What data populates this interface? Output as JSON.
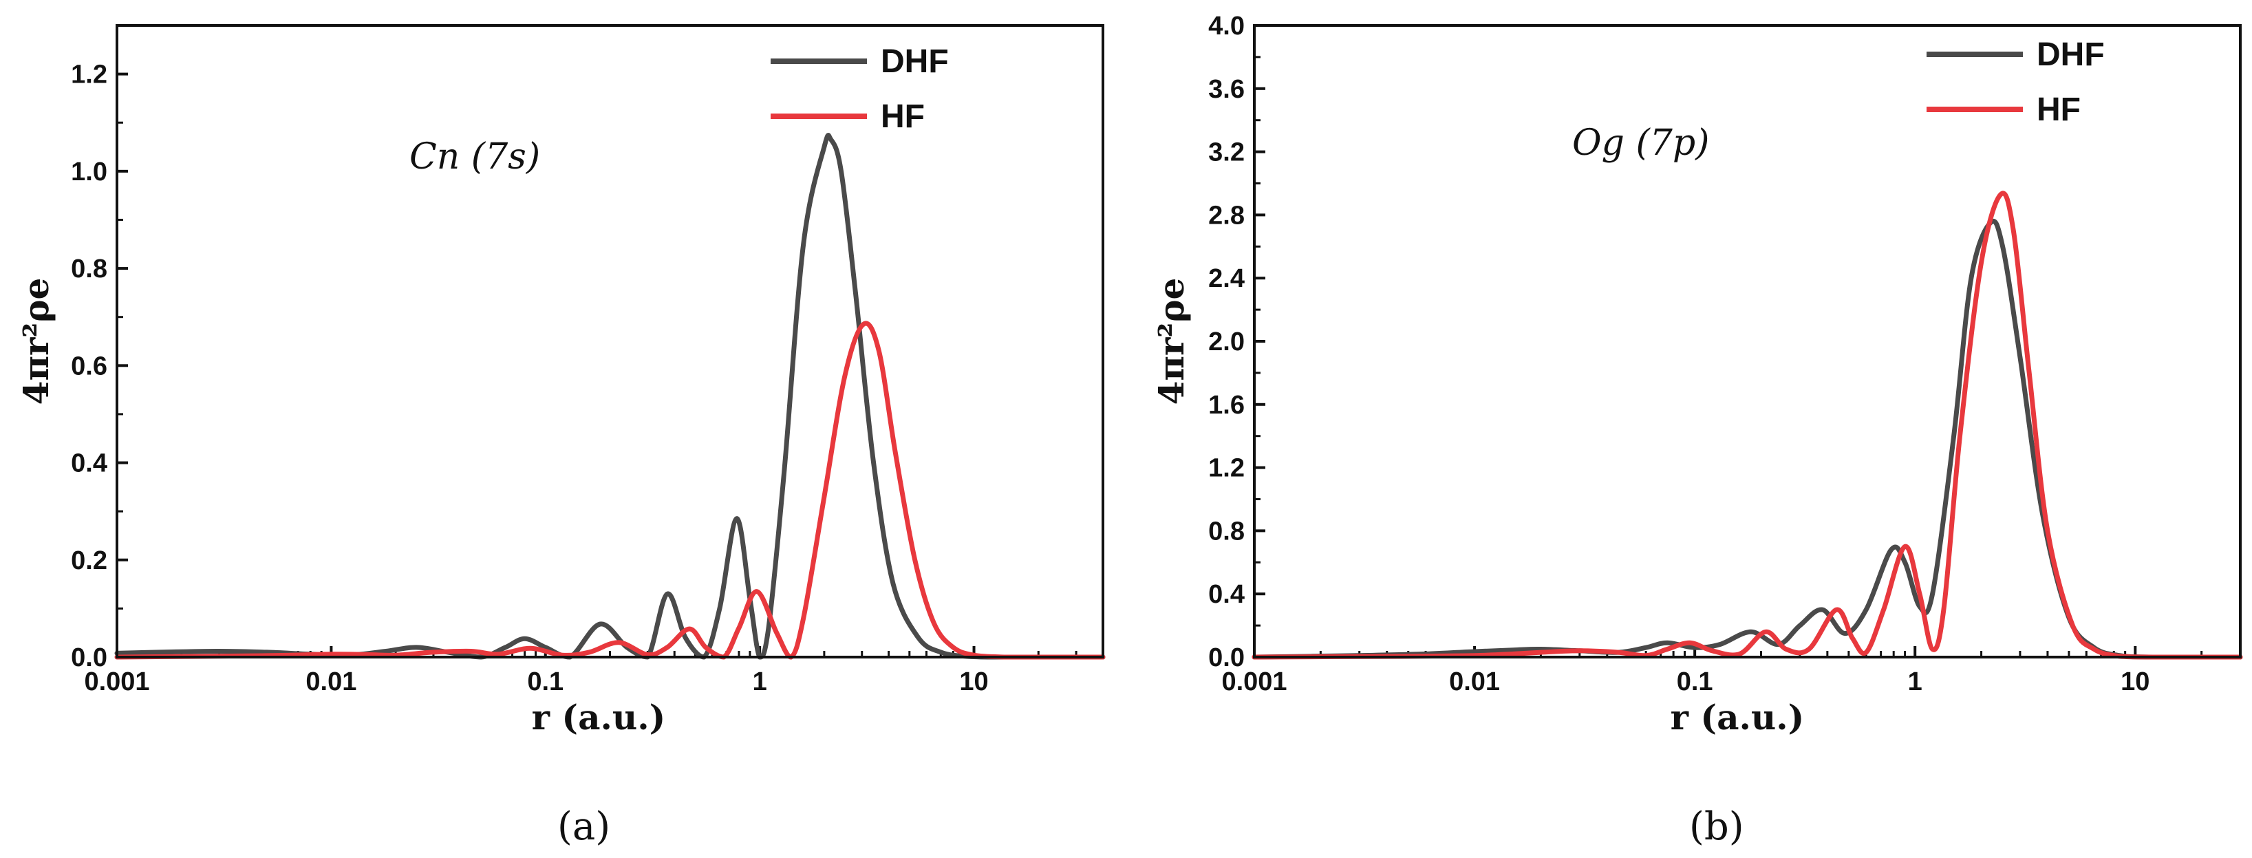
{
  "chart_data": [
    {
      "type": "line",
      "panel_label": "(a)",
      "annotation": "Cn (7s)",
      "xlabel": "r (a.u.)",
      "ylabel": "4πr²ρe",
      "xscale": "log",
      "xlim": [
        0.001,
        40
      ],
      "ylim": [
        0,
        1.3
      ],
      "xticks": [
        {
          "value": 0.001,
          "label": "0.001"
        },
        {
          "value": 0.01,
          "label": "0.01"
        },
        {
          "value": 0.1,
          "label": "0.1"
        },
        {
          "value": 1,
          "label": "1"
        },
        {
          "value": 10,
          "label": "10"
        }
      ],
      "yticks": [
        {
          "value": 0.0,
          "label": "0.0"
        },
        {
          "value": 0.2,
          "label": "0.2"
        },
        {
          "value": 0.4,
          "label": "0.4"
        },
        {
          "value": 0.6,
          "label": "0.6"
        },
        {
          "value": 0.8,
          "label": "0.8"
        },
        {
          "value": 1.0,
          "label": "1.0"
        },
        {
          "value": 1.2,
          "label": "1.2"
        }
      ],
      "legend_position": "top-right",
      "series": [
        {
          "name": "DHF",
          "color": "#4a4a4a",
          "x": [
            0.001,
            0.002,
            0.003,
            0.005,
            0.008,
            0.012,
            0.018,
            0.025,
            0.035,
            0.05,
            0.065,
            0.08,
            0.1,
            0.13,
            0.18,
            0.24,
            0.3,
            0.37,
            0.45,
            0.55,
            0.65,
            0.78,
            0.9,
            1.0,
            1.1,
            1.3,
            1.6,
            2.0,
            2.15,
            2.4,
            2.8,
            3.4,
            4.2,
            5.5,
            7.0,
            9.0,
            12.0,
            20.0,
            40.0
          ],
          "y": [
            0.008,
            0.011,
            0.012,
            0.01,
            0.006,
            0.004,
            0.012,
            0.02,
            0.01,
            0.0,
            0.02,
            0.038,
            0.02,
            0.0,
            0.068,
            0.02,
            0.0,
            0.13,
            0.04,
            0.0,
            0.1,
            0.285,
            0.12,
            0.0,
            0.06,
            0.38,
            0.85,
            1.05,
            1.065,
            1.0,
            0.75,
            0.4,
            0.15,
            0.04,
            0.01,
            0.002,
            0.0,
            0.0,
            0.0
          ]
        },
        {
          "name": "HF",
          "color": "#e8383d",
          "x": [
            0.001,
            0.005,
            0.01,
            0.015,
            0.02,
            0.03,
            0.045,
            0.06,
            0.085,
            0.12,
            0.16,
            0.22,
            0.3,
            0.37,
            0.47,
            0.56,
            0.68,
            0.8,
            0.97,
            1.2,
            1.4,
            1.6,
            2.0,
            2.5,
            3.05,
            3.6,
            4.3,
            5.3,
            6.5,
            8.0,
            10.0,
            14.0,
            20.0,
            40.0
          ],
          "y": [
            0.0,
            0.003,
            0.006,
            0.005,
            0.004,
            0.01,
            0.012,
            0.006,
            0.018,
            0.004,
            0.01,
            0.03,
            0.005,
            0.02,
            0.058,
            0.02,
            0.0,
            0.06,
            0.135,
            0.05,
            0.0,
            0.08,
            0.33,
            0.58,
            0.685,
            0.63,
            0.42,
            0.2,
            0.07,
            0.02,
            0.004,
            0.0,
            0.0,
            0.0
          ]
        }
      ]
    },
    {
      "type": "line",
      "panel_label": "(b)",
      "annotation": "Og (7p)",
      "xlabel": "r (a.u.)",
      "ylabel": "4πr²ρe",
      "xscale": "log",
      "xlim": [
        0.001,
        30
      ],
      "ylim": [
        0,
        4.0
      ],
      "xticks": [
        {
          "value": 0.001,
          "label": "0.001"
        },
        {
          "value": 0.01,
          "label": "0.01"
        },
        {
          "value": 0.1,
          "label": "0.1"
        },
        {
          "value": 1,
          "label": "1"
        },
        {
          "value": 10,
          "label": "10"
        }
      ],
      "yticks": [
        {
          "value": 0.0,
          "label": "0.0"
        },
        {
          "value": 0.4,
          "label": "0.4"
        },
        {
          "value": 0.8,
          "label": "0.8"
        },
        {
          "value": 1.2,
          "label": "1.2"
        },
        {
          "value": 1.6,
          "label": "1.6"
        },
        {
          "value": 2.0,
          "label": "2.0"
        },
        {
          "value": 2.4,
          "label": "2.4"
        },
        {
          "value": 2.8,
          "label": "2.8"
        },
        {
          "value": 3.2,
          "label": "3.2"
        },
        {
          "value": 3.6,
          "label": "3.6"
        },
        {
          "value": 4.0,
          "label": "4.0"
        }
      ],
      "legend_position": "top-right",
      "series": [
        {
          "name": "DHF",
          "color": "#4a4a4a",
          "x": [
            0.001,
            0.003,
            0.006,
            0.01,
            0.015,
            0.02,
            0.03,
            0.045,
            0.06,
            0.075,
            0.1,
            0.13,
            0.18,
            0.24,
            0.3,
            0.38,
            0.48,
            0.6,
            0.78,
            0.9,
            1.05,
            1.2,
            1.5,
            1.8,
            2.2,
            2.5,
            3.0,
            3.8,
            5.0,
            6.5,
            8.5,
            12.0,
            30.0
          ],
          "y": [
            0.0,
            0.01,
            0.02,
            0.035,
            0.045,
            0.05,
            0.04,
            0.03,
            0.06,
            0.09,
            0.06,
            0.08,
            0.16,
            0.08,
            0.2,
            0.3,
            0.15,
            0.3,
            0.68,
            0.6,
            0.32,
            0.4,
            1.4,
            2.4,
            2.75,
            2.6,
            1.9,
            0.9,
            0.25,
            0.06,
            0.01,
            0.0,
            0.0
          ]
        },
        {
          "name": "HF",
          "color": "#e8383d",
          "x": [
            0.001,
            0.005,
            0.01,
            0.015,
            0.02,
            0.03,
            0.045,
            0.06,
            0.075,
            0.095,
            0.12,
            0.16,
            0.21,
            0.26,
            0.33,
            0.44,
            0.52,
            0.6,
            0.72,
            0.9,
            1.05,
            1.2,
            1.35,
            1.6,
            2.0,
            2.45,
            2.8,
            3.3,
            4.0,
            5.2,
            6.5,
            8.5,
            12.0,
            30.0
          ],
          "y": [
            0.0,
            0.005,
            0.01,
            0.02,
            0.03,
            0.04,
            0.03,
            0.01,
            0.05,
            0.09,
            0.04,
            0.02,
            0.16,
            0.05,
            0.05,
            0.3,
            0.12,
            0.03,
            0.3,
            0.7,
            0.4,
            0.05,
            0.3,
            1.4,
            2.5,
            2.93,
            2.7,
            1.8,
            0.8,
            0.2,
            0.05,
            0.005,
            0.0,
            0.0
          ]
        }
      ]
    }
  ]
}
